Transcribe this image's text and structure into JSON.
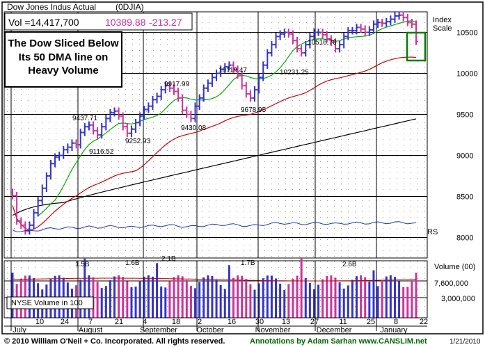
{
  "header": {
    "title": "Dow Jones Indus Actual",
    "symbol": "(0DJIA)",
    "vol_label": "Vol =14,417,700",
    "price": "10389.88",
    "change": "-213.27"
  },
  "annotation_box": {
    "lines": [
      "The Dow Sliced Below",
      "Its 50 DMA line on",
      "Heavy Volume"
    ]
  },
  "right_labels": {
    "index": "Index",
    "scale": "Scale",
    "volume": "Volume (00)",
    "rs": "RS"
  },
  "volume_panel": {
    "label": "NYSE Volume in 100"
  },
  "footer": {
    "copyright": "© 2010 William O'Neil + Co. Incorporated. All rights reserved.",
    "annotations": "Annotations by Adam Sarhan  www.CANSLIM.net",
    "date": "1/21/2010"
  },
  "colors": {
    "up_bar": "#3333cc",
    "down_bar": "#cc3399",
    "ma50": "#00aa00",
    "ma200": "#cc0000",
    "ma_long": "#000000",
    "rs_line": "#2233aa",
    "price_text": "#cc3399",
    "volume_avg": "#cc0000",
    "highlight_box": "#008000"
  },
  "chart_data": {
    "type": "ohlc",
    "price_axis": {
      "ticks": [
        8000,
        8500,
        9000,
        9500,
        10000,
        10500
      ],
      "range": [
        7750,
        10750
      ]
    },
    "volume_axis": {
      "ticks": [
        "7,600,000",
        "3,000,000"
      ]
    },
    "x_ticks": [
      "10",
      "24",
      "7",
      "21",
      "4",
      "18",
      "2",
      "16",
      "30",
      "13",
      "27",
      "11",
      "25",
      "8",
      "22"
    ],
    "months": [
      "July",
      "August",
      "September",
      "October",
      "November",
      "December",
      "January"
    ],
    "price_annotations": [
      "9437.71",
      "9116.52",
      "9252.93",
      "9917.99",
      "9430.08",
      "10119.47",
      "9678.95",
      "10516.70",
      "10231.25"
    ],
    "volume_annotations": [
      "1.5B",
      "1.6B",
      "2.1B",
      "1.7B",
      "2.6B"
    ],
    "close_series": [
      8510,
      8200,
      8150,
      8080,
      8150,
      8300,
      8450,
      8600,
      8750,
      8900,
      8980,
      9000,
      9070,
      9100,
      9150,
      9130,
      9280,
      9350,
      9370,
      9300,
      9250,
      9350,
      9450,
      9520,
      9540,
      9480,
      9350,
      9270,
      9320,
      9400,
      9480,
      9560,
      9600,
      9680,
      9720,
      9800,
      9850,
      9820,
      9780,
      9700,
      9550,
      9500,
      9450,
      9600,
      9700,
      9820,
      9880,
      9950,
      10000,
      10050,
      10080,
      10100,
      10050,
      9980,
      9850,
      9750,
      9700,
      9800,
      9950,
      10100,
      10250,
      10350,
      10450,
      10480,
      10500,
      10480,
      10400,
      10300,
      10250,
      10350,
      10450,
      10500,
      10500,
      10470,
      10420,
      10380,
      10300,
      10350,
      10450,
      10520,
      10520,
      10560,
      10540,
      10500,
      10530,
      10600,
      10620,
      10610,
      10630,
      10660,
      10700,
      10710,
      10680,
      10620,
      10600,
      10389.88
    ]
  }
}
